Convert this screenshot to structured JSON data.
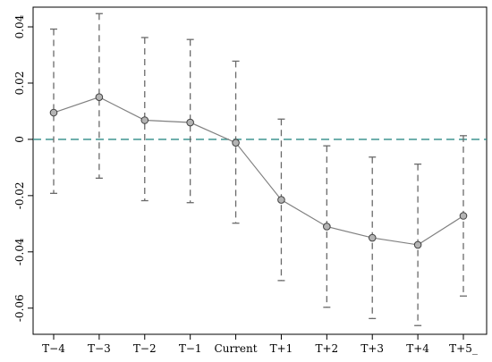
{
  "chart_data": {
    "type": "line",
    "categories": [
      "T−4",
      "T−3",
      "T−2",
      "T−1",
      "Current",
      "T+1",
      "T+2",
      "T+3",
      "T+4",
      "T+5_"
    ],
    "series": [
      {
        "values": [
          0.0095,
          0.015,
          0.0068,
          0.006,
          -0.0012,
          -0.0215,
          -0.031,
          -0.035,
          -0.0375,
          -0.0272
        ],
        "lower": [
          -0.0192,
          -0.0138,
          -0.0218,
          -0.0225,
          -0.0298,
          -0.0502,
          -0.0597,
          -0.0637,
          -0.0662,
          -0.0557
        ],
        "upper": [
          0.0392,
          0.0447,
          0.0362,
          0.0355,
          0.0278,
          0.0072,
          -0.0023,
          -0.0063,
          -0.0088,
          0.0013
        ]
      }
    ],
    "y_ticks": [
      0.04,
      0.02,
      0,
      -0.02,
      -0.04,
      -0.06
    ],
    "y_tick_labels": [
      "0.04",
      "0.02",
      "0",
      "-0.02",
      "-0.04",
      "-0.06"
    ],
    "ylim": [
      -0.0693,
      0.047
    ],
    "reference_line": {
      "y": 0,
      "style": "dashed",
      "color": "#2e8b86"
    },
    "colors": {
      "line": "#808080",
      "errorbar": "#6a6a6a",
      "marker_fill": "#b4b4b4",
      "marker_edge": "#404040"
    },
    "grid": false,
    "xlabel": "",
    "ylabel": "",
    "title": ""
  }
}
